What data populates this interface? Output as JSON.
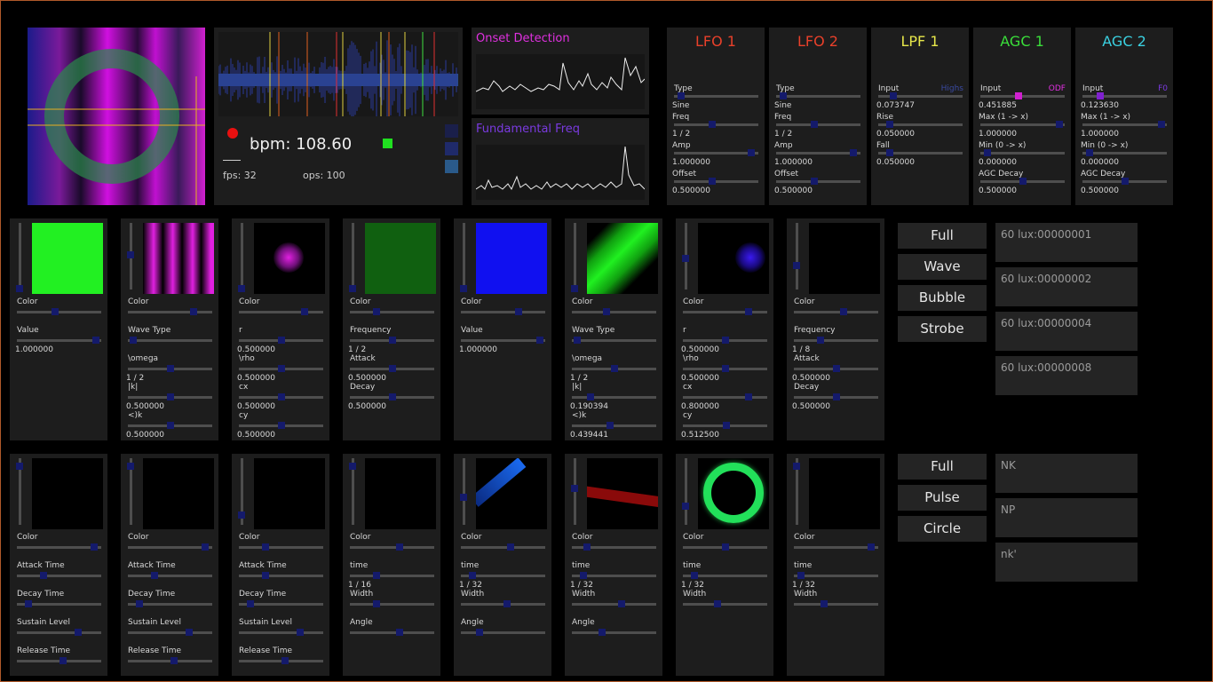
{
  "colors": {
    "accent_red": "#e8321e",
    "lfo_red": "#e8402a",
    "lpf_yellow": "#e6e64a",
    "agc1_green": "#3adf3a",
    "agc2_cyan": "#3ad0e0",
    "onset_magenta": "#e030e0",
    "freq_purple": "#7a3ae0",
    "knob_blue": "#141a6b"
  },
  "audio": {
    "bpm": "bpm: 108.60",
    "fps": "fps: 32",
    "ops": "ops: 100",
    "onset_title": "Onset Detection",
    "freq_title": "Fundamental Freq"
  },
  "mods": [
    {
      "title": "LFO 1",
      "lbl1": "Type",
      "v1": "Sine",
      "lbl2": "Freq",
      "v2": "1 / 2",
      "lbl3": "Amp",
      "v3": "1.000000",
      "lbl4": "Offset",
      "v4": "0.500000"
    },
    {
      "title": "LFO 2",
      "lbl1": "Type",
      "v1": "Sine",
      "lbl2": "Freq",
      "v2": "1 / 2",
      "lbl3": "Amp",
      "v3": "1.000000",
      "lbl4": "Offset",
      "v4": "0.500000"
    },
    {
      "title": "LPF 1",
      "lbl1": "Input",
      "tag": "Highs",
      "v1": "0.073747",
      "lbl2": "Rise",
      "v2": "0.050000",
      "lbl3": "Fall",
      "v3": "0.050000"
    },
    {
      "title": "AGC 1",
      "lbl1": "Input",
      "tag": "ODF",
      "v1": "0.451885",
      "lbl2": "Max (1 -> x)",
      "v2": "1.000000",
      "lbl3": "Min (0 -> x)",
      "v3": "0.000000",
      "lbl4": "AGC Decay",
      "v4": "0.500000"
    },
    {
      "title": "AGC 2",
      "lbl1": "Input",
      "tag": "F0",
      "v1": "0.123630",
      "lbl2": "Max (1 -> x)",
      "v2": "1.000000",
      "lbl3": "Min (0 -> x)",
      "v3": "0.000000",
      "lbl4": "AGC Decay",
      "v4": "0.500000"
    }
  ],
  "row1": [
    {
      "params": [
        {
          "l": "Color",
          "v": ""
        },
        {
          "l": "Value",
          "v": "1.000000"
        }
      ]
    },
    {
      "params": [
        {
          "l": "Color",
          "v": ""
        },
        {
          "l": "Wave Type",
          "v": ""
        },
        {
          "l": "\\omega",
          "v": "1 / 2"
        },
        {
          "l": "|k|",
          "v": "0.500000"
        },
        {
          "l": "<)k",
          "v": "0.500000"
        }
      ]
    },
    {
      "params": [
        {
          "l": "Color",
          "v": ""
        },
        {
          "l": "r",
          "v": "0.500000"
        },
        {
          "l": "\\rho",
          "v": "0.500000"
        },
        {
          "l": "cx",
          "v": "0.500000"
        },
        {
          "l": "cy",
          "v": "0.500000"
        }
      ]
    },
    {
      "params": [
        {
          "l": "Color",
          "v": ""
        },
        {
          "l": "Frequency",
          "v": "1 / 2"
        },
        {
          "l": "Attack",
          "v": "0.500000"
        },
        {
          "l": "Decay",
          "v": "0.500000"
        }
      ]
    },
    {
      "params": [
        {
          "l": "Color",
          "v": ""
        },
        {
          "l": "Value",
          "v": "1.000000"
        }
      ]
    },
    {
      "params": [
        {
          "l": "Color",
          "v": ""
        },
        {
          "l": "Wave Type",
          "v": ""
        },
        {
          "l": "\\omega",
          "v": "1 / 2"
        },
        {
          "l": "|k|",
          "v": "0.190394"
        },
        {
          "l": "<)k",
          "v": "0.439441"
        }
      ]
    },
    {
      "params": [
        {
          "l": "Color",
          "v": ""
        },
        {
          "l": "r",
          "v": "0.500000"
        },
        {
          "l": "\\rho",
          "v": "0.500000"
        },
        {
          "l": "cx",
          "v": "0.800000"
        },
        {
          "l": "cy",
          "v": "0.512500"
        }
      ]
    },
    {
      "params": [
        {
          "l": "Color",
          "v": ""
        },
        {
          "l": "Frequency",
          "v": "1 / 8"
        },
        {
          "l": "Attack",
          "v": "0.500000"
        },
        {
          "l": "Decay",
          "v": "0.500000"
        }
      ]
    }
  ],
  "row2": [
    {
      "params": [
        {
          "l": "Color",
          "v": ""
        },
        {
          "l": "Attack Time",
          "v": ""
        },
        {
          "l": "Decay Time",
          "v": ""
        },
        {
          "l": "Sustain Level",
          "v": ""
        },
        {
          "l": "Release Time",
          "v": ""
        }
      ]
    },
    {
      "params": [
        {
          "l": "Color",
          "v": ""
        },
        {
          "l": "Attack Time",
          "v": ""
        },
        {
          "l": "Decay Time",
          "v": ""
        },
        {
          "l": "Sustain Level",
          "v": ""
        },
        {
          "l": "Release Time",
          "v": ""
        }
      ]
    },
    {
      "params": [
        {
          "l": "Color",
          "v": ""
        },
        {
          "l": "Attack Time",
          "v": ""
        },
        {
          "l": "Decay Time",
          "v": ""
        },
        {
          "l": "Sustain Level",
          "v": ""
        },
        {
          "l": "Release Time",
          "v": ""
        }
      ]
    },
    {
      "params": [
        {
          "l": "Color",
          "v": ""
        },
        {
          "l": "time",
          "v": "1 / 16"
        },
        {
          "l": "Width",
          "v": ""
        },
        {
          "l": "Angle",
          "v": ""
        }
      ]
    },
    {
      "params": [
        {
          "l": "Color",
          "v": ""
        },
        {
          "l": "time",
          "v": "1 / 32"
        },
        {
          "l": "Width",
          "v": ""
        },
        {
          "l": "Angle",
          "v": ""
        }
      ]
    },
    {
      "params": [
        {
          "l": "Color",
          "v": ""
        },
        {
          "l": "time",
          "v": "1 / 32"
        },
        {
          "l": "Width",
          "v": ""
        },
        {
          "l": "Angle",
          "v": ""
        }
      ]
    },
    {
      "params": [
        {
          "l": "Color",
          "v": ""
        },
        {
          "l": "time",
          "v": "1 / 32"
        },
        {
          "l": "Width",
          "v": ""
        }
      ]
    },
    {
      "params": [
        {
          "l": "Color",
          "v": ""
        },
        {
          "l": "time",
          "v": "1 / 32"
        },
        {
          "l": "Width",
          "v": ""
        }
      ]
    }
  ],
  "buttons1": [
    "Full",
    "Wave",
    "Bubble",
    "Strobe"
  ],
  "lights1": [
    "60 lux:00000001",
    "60 lux:00000002",
    "60 lux:00000004",
    "60 lux:00000008"
  ],
  "buttons2": [
    "Full",
    "Pulse",
    "Circle"
  ],
  "lights2": [
    "NK",
    "NP",
    "nk'"
  ]
}
